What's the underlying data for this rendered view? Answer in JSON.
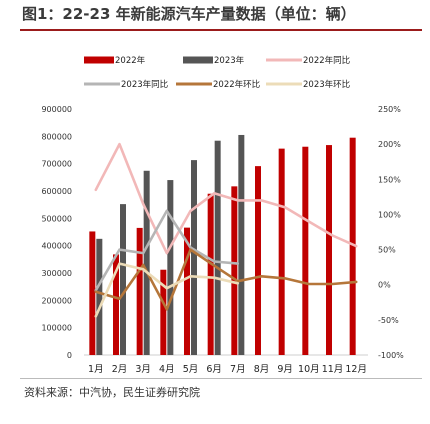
{
  "page": {
    "title": "图1：22-23 年新能源汽车产量数据（单位：辆）",
    "source": "资料来源：中汽协，民生证券研究院"
  },
  "chart_data": {
    "type": "bar",
    "categories": [
      "1月",
      "2月",
      "3月",
      "4月",
      "5月",
      "6月",
      "7月",
      "8月",
      "9月",
      "10月",
      "11月",
      "12月"
    ],
    "y_left": {
      "min": 0,
      "max": 900000,
      "ticks": [
        0,
        100000,
        200000,
        300000,
        400000,
        500000,
        600000,
        700000,
        800000,
        900000
      ]
    },
    "y_right": {
      "min": -100,
      "max": 250,
      "ticks": [
        "250%",
        "200%",
        "150%",
        "100%",
        "50%",
        "0%",
        "-50%",
        "-100%"
      ]
    },
    "bar_series": [
      {
        "name": "2022年",
        "color": "#c00000",
        "values": [
          452000,
          368000,
          465000,
          312000,
          466000,
          590000,
          617000,
          691000,
          755000,
          762000,
          768000,
          795000
        ]
      },
      {
        "name": "2023年",
        "color": "#555555",
        "values": [
          425000,
          552000,
          674000,
          640000,
          713000,
          784000,
          805000
        ]
      }
    ],
    "line_series": [
      {
        "name": "2022年同比",
        "color": "#f2b8b8",
        "axis": "right",
        "values": [
          135,
          200,
          115,
          45,
          105,
          130,
          120,
          120,
          110,
          90,
          70,
          55
        ]
      },
      {
        "name": "2023年同比",
        "color": "#b5b5b5",
        "axis": "right",
        "values": [
          -8,
          50,
          45,
          105,
          53,
          33,
          30
        ]
      },
      {
        "name": "2022年环比",
        "color": "#b5763a",
        "axis": "right",
        "values": [
          -10,
          -20,
          28,
          -35,
          50,
          27,
          5,
          12,
          9,
          1,
          1,
          4
        ]
      },
      {
        "name": "2023年环比",
        "color": "#ecdcb8",
        "axis": "right",
        "values": [
          -45,
          30,
          22,
          -5,
          12,
          10,
          2
        ]
      }
    ],
    "legend": [
      "2022年",
      "2023年",
      "2022年同比",
      "2023年同比",
      "2022年环比",
      "2023年环比"
    ],
    "legend_position": "top",
    "grid": false
  }
}
